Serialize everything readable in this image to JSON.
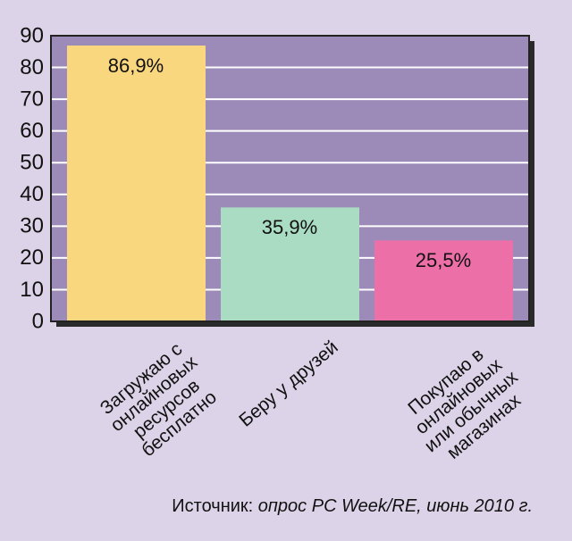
{
  "chart_data": {
    "type": "bar",
    "categories": [
      "Загружаю с\nонлайновых\nресурсов\nбесплатно",
      "Беру у друзей",
      "Покупаю в\nонлайновых\nили обычных\nмагазинах"
    ],
    "values": [
      86.9,
      35.9,
      25.5
    ],
    "value_labels": [
      "86,9%",
      "35,9%",
      "25,5%"
    ],
    "colors": [
      "#f9d77e",
      "#a9dcc2",
      "#ec6fa8"
    ],
    "ylim": [
      0,
      90
    ],
    "yticks": [
      0,
      10,
      20,
      30,
      40,
      50,
      60,
      70,
      80,
      90
    ],
    "grid": true,
    "source": {
      "label": "Источник:",
      "text": "опрос PC Week/RE, июнь 2010 г."
    }
  }
}
